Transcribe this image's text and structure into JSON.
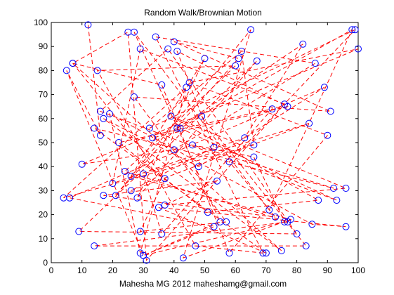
{
  "chart_data": {
    "type": "line",
    "title": "Random Walk/Brownian Motion",
    "xlabel": "Mahesha MG 2012 maheshamg@gmail.com",
    "ylabel": "",
    "xlim": [
      0,
      100
    ],
    "ylim": [
      0,
      100
    ],
    "xticks": [
      0,
      10,
      20,
      30,
      40,
      50,
      60,
      70,
      80,
      90,
      100
    ],
    "yticks": [
      0,
      10,
      20,
      30,
      40,
      50,
      60,
      70,
      80,
      90,
      100
    ],
    "grid": false,
    "series": [
      {
        "line_style": "dashed",
        "line_color": "#ff0000",
        "marker": "circle",
        "marker_color": "#0000ff",
        "x": [
          12,
          16,
          5,
          30,
          55,
          27,
          71,
          98,
          41,
          82,
          63,
          20,
          29,
          76,
          31,
          25,
          7,
          36,
          58,
          90,
          45,
          100,
          10,
          40,
          86,
          34,
          69,
          47,
          15,
          60,
          24,
          77,
          14,
          83,
          49,
          42,
          93,
          16,
          38,
          80,
          9,
          67,
          28,
          50,
          26,
          78,
          43,
          65,
          21,
          61,
          40,
          91,
          27,
          57,
          29,
          37,
          7,
          75,
          17,
          48,
          89,
          6,
          53,
          30,
          76,
          66,
          46,
          92,
          14,
          70,
          35,
          96,
          85,
          19,
          29,
          44,
          4,
          66,
          62,
          32,
          99,
          58,
          73,
          17,
          54,
          37,
          96,
          39,
          87,
          51,
          22,
          72,
          36,
          30,
          84,
          26,
          53,
          41,
          77,
          33
        ],
        "y": [
          99,
          53,
          80,
          3,
          17,
          96,
          22,
          97,
          56,
          91,
          52,
          33,
          89,
          66,
          1,
          96,
          83,
          74,
          4,
          53,
          75,
          89,
          41,
          47,
          83,
          94,
          4,
          7,
          80,
          82,
          38,
          17,
          7,
          7,
          61,
          56,
          26,
          63,
          89,
          12,
          13,
          84,
          27,
          85,
          36,
          18,
          2,
          97,
          28,
          85,
          92,
          63,
          69,
          17,
          13,
          35,
          83,
          5,
          60,
          40,
          73,
          27,
          15,
          3,
          17,
          44,
          49,
          31,
          56,
          4,
          23,
          15,
          16,
          62,
          4,
          73,
          27,
          49,
          88,
          56,
          97,
          42,
          19,
          28,
          34,
          24,
          31,
          61,
          26,
          21,
          50,
          64,
          12,
          37,
          58,
          30,
          48,
          88,
          65,
          52
        ]
      }
    ]
  }
}
